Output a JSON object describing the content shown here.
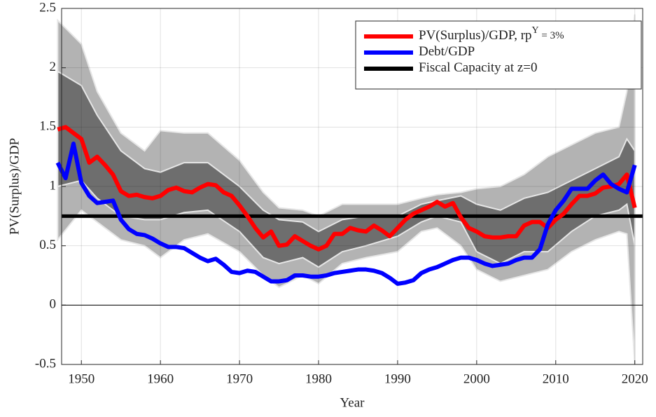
{
  "chart_data": {
    "type": "line",
    "x_label": "Year",
    "y_label": "PV(Surplus)/GDP",
    "x": [
      1947,
      1948,
      1949,
      1950,
      1951,
      1952,
      1953,
      1954,
      1955,
      1956,
      1957,
      1958,
      1959,
      1960,
      1961,
      1962,
      1963,
      1964,
      1965,
      1966,
      1967,
      1968,
      1969,
      1970,
      1971,
      1972,
      1973,
      1974,
      1975,
      1976,
      1977,
      1978,
      1979,
      1980,
      1981,
      1982,
      1983,
      1984,
      1985,
      1986,
      1987,
      1988,
      1989,
      1990,
      1991,
      1992,
      1993,
      1994,
      1995,
      1996,
      1997,
      1998,
      1999,
      2000,
      2001,
      2002,
      2003,
      2004,
      2005,
      2006,
      2007,
      2008,
      2009,
      2010,
      2011,
      2012,
      2013,
      2014,
      2015,
      2016,
      2017,
      2018,
      2019,
      2020
    ],
    "series": [
      {
        "name": "PV(Surplus)/GDP, rp",
        "name_superscript": "Y",
        "name_suffix": " = 3%",
        "color": "#ff0000",
        "values": [
          1.48,
          1.5,
          1.45,
          1.4,
          1.2,
          1.25,
          1.18,
          1.1,
          0.96,
          0.92,
          0.93,
          0.91,
          0.9,
          0.92,
          0.97,
          0.99,
          0.96,
          0.95,
          0.99,
          1.02,
          1.01,
          0.95,
          0.92,
          0.84,
          0.75,
          0.65,
          0.57,
          0.62,
          0.5,
          0.51,
          0.58,
          0.54,
          0.5,
          0.47,
          0.5,
          0.6,
          0.6,
          0.65,
          0.63,
          0.62,
          0.67,
          0.63,
          0.58,
          0.65,
          0.72,
          0.77,
          0.8,
          0.83,
          0.87,
          0.83,
          0.86,
          0.74,
          0.65,
          0.62,
          0.58,
          0.57,
          0.57,
          0.58,
          0.58,
          0.67,
          0.7,
          0.7,
          0.65,
          0.72,
          0.77,
          0.85,
          0.92,
          0.92,
          0.94,
          0.99,
          1.0,
          1.02,
          1.1,
          0.82
        ]
      },
      {
        "name": "Debt/GDP",
        "color": "#0000ff",
        "values": [
          1.2,
          1.07,
          1.36,
          1.03,
          0.92,
          0.86,
          0.87,
          0.88,
          0.72,
          0.64,
          0.6,
          0.59,
          0.56,
          0.52,
          0.49,
          0.49,
          0.48,
          0.44,
          0.4,
          0.37,
          0.39,
          0.34,
          0.28,
          0.27,
          0.29,
          0.28,
          0.24,
          0.2,
          0.2,
          0.21,
          0.25,
          0.25,
          0.24,
          0.24,
          0.25,
          0.27,
          0.28,
          0.29,
          0.3,
          0.3,
          0.29,
          0.27,
          0.23,
          0.18,
          0.19,
          0.21,
          0.27,
          0.3,
          0.32,
          0.35,
          0.38,
          0.4,
          0.4,
          0.38,
          0.35,
          0.33,
          0.34,
          0.35,
          0.38,
          0.4,
          0.4,
          0.47,
          0.68,
          0.8,
          0.88,
          0.98,
          0.98,
          0.98,
          1.05,
          1.1,
          1.02,
          0.98,
          0.95,
          1.18
        ]
      }
    ],
    "reference_lines": [
      {
        "name": "Fiscal Capacity at z=0",
        "color": "#000000",
        "value": 0.75
      }
    ],
    "bands": [
      {
        "color": "#b3b3b3",
        "x": [
          1947,
          1950,
          1952,
          1955,
          1958,
          1960,
          1963,
          1966,
          1970,
          1973,
          1975,
          1978,
          1980,
          1983,
          1986,
          1990,
          1993,
          1995,
          1998,
          2000,
          2003,
          2006,
          2009,
          2012,
          2015,
          2018,
          2019,
          2020
        ],
        "lower": [
          0.55,
          0.8,
          0.7,
          0.55,
          0.5,
          0.4,
          0.55,
          0.6,
          0.45,
          0.25,
          0.15,
          0.25,
          0.18,
          0.35,
          0.4,
          0.45,
          0.62,
          0.65,
          0.5,
          0.3,
          0.2,
          0.25,
          0.3,
          0.45,
          0.55,
          0.62,
          0.6,
          -0.5
        ],
        "upper": [
          2.4,
          2.2,
          1.8,
          1.45,
          1.3,
          1.47,
          1.45,
          1.45,
          1.22,
          0.95,
          0.82,
          0.8,
          0.75,
          0.85,
          0.85,
          0.85,
          0.9,
          0.93,
          0.95,
          0.98,
          1.0,
          1.1,
          1.25,
          1.35,
          1.45,
          1.5,
          1.8,
          2.45
        ]
      },
      {
        "color": "#6e6e6e",
        "x": [
          1947,
          1950,
          1952,
          1955,
          1958,
          1960,
          1963,
          1966,
          1970,
          1973,
          1975,
          1978,
          1980,
          1983,
          1986,
          1990,
          1993,
          1995,
          1998,
          2000,
          2003,
          2006,
          2009,
          2012,
          2015,
          2018,
          2019,
          2020
        ],
        "lower": [
          1.0,
          1.05,
          0.9,
          0.75,
          0.72,
          0.72,
          0.78,
          0.8,
          0.62,
          0.4,
          0.35,
          0.4,
          0.32,
          0.45,
          0.5,
          0.58,
          0.7,
          0.75,
          0.7,
          0.45,
          0.35,
          0.45,
          0.45,
          0.62,
          0.75,
          0.8,
          0.85,
          0.5
        ],
        "upper": [
          1.97,
          1.85,
          1.6,
          1.3,
          1.15,
          1.12,
          1.2,
          1.2,
          1.0,
          0.8,
          0.72,
          0.7,
          0.62,
          0.72,
          0.75,
          0.75,
          0.85,
          0.88,
          0.92,
          0.85,
          0.8,
          0.9,
          0.95,
          1.05,
          1.15,
          1.25,
          1.4,
          1.3
        ]
      }
    ],
    "xlim": [
      1947.5,
      2021
    ],
    "ylim": [
      -0.5,
      2.5
    ],
    "xticks": [
      1950,
      1960,
      1970,
      1980,
      1990,
      2000,
      2010,
      2020
    ],
    "yticks": [
      -0.5,
      0,
      0.5,
      1,
      1.5,
      2,
      2.5
    ],
    "grid": true,
    "legend_position": "upper right"
  }
}
